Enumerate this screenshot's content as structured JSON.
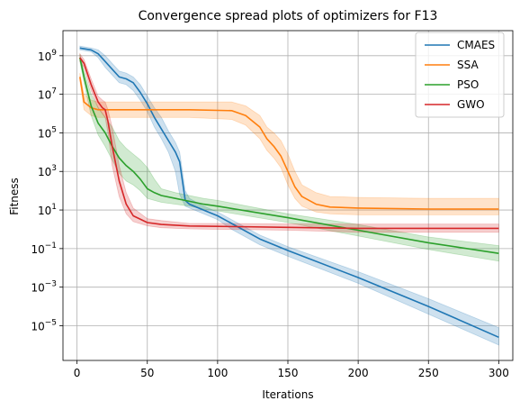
{
  "chart_data": {
    "type": "line",
    "title": "Convergence spread plots of optimizers for F13",
    "xlabel": "Iterations",
    "ylabel": "Fitness",
    "xlim": [
      -10,
      310
    ],
    "ylim_log10": [
      -6.8,
      10.3
    ],
    "yscale": "log",
    "grid": true,
    "legend_position": "top-right",
    "x_ticks": [
      0,
      50,
      100,
      150,
      200,
      250,
      300
    ],
    "x_tick_labels": [
      "0",
      "50",
      "100",
      "150",
      "200",
      "250",
      "300"
    ],
    "y_tick_exponents": [
      9,
      7,
      5,
      3,
      1,
      -1,
      -3,
      -5
    ],
    "y_tick_labels": [
      {
        "base": "10",
        "exp": "9"
      },
      {
        "base": "10",
        "exp": "7"
      },
      {
        "base": "10",
        "exp": "5"
      },
      {
        "base": "10",
        "exp": "3"
      },
      {
        "base": "10",
        "exp": "1"
      },
      {
        "base": "10",
        "exp": "−1"
      },
      {
        "base": "10",
        "exp": "−3"
      },
      {
        "base": "10",
        "exp": "−5"
      }
    ],
    "series": [
      {
        "name": "CMAES",
        "color": "#1f77b4",
        "x": [
          2,
          10,
          15,
          20,
          25,
          30,
          35,
          40,
          45,
          50,
          55,
          60,
          65,
          70,
          73,
          77,
          80,
          90,
          100,
          110,
          130,
          150,
          200,
          250,
          300
        ],
        "log_mean": [
          9.4,
          9.3,
          9.1,
          8.7,
          8.3,
          7.9,
          7.8,
          7.6,
          7.1,
          6.5,
          5.8,
          5.2,
          4.6,
          4.0,
          3.5,
          1.5,
          1.3,
          1.0,
          0.7,
          0.3,
          -0.5,
          -1.1,
          -2.5,
          -4.0,
          -5.6
        ],
        "log_upper": [
          9.5,
          9.4,
          9.3,
          9.0,
          8.6,
          8.2,
          8.1,
          7.9,
          7.5,
          6.9,
          6.3,
          5.8,
          5.1,
          4.5,
          4.0,
          2.0,
          1.6,
          1.2,
          0.9,
          0.5,
          -0.3,
          -0.9,
          -2.2,
          -3.6,
          -5.1
        ],
        "log_lower": [
          9.3,
          9.2,
          8.9,
          8.4,
          8.0,
          7.6,
          7.5,
          7.2,
          6.7,
          6.1,
          5.3,
          4.7,
          4.0,
          3.0,
          1.8,
          1.2,
          1.1,
          0.8,
          0.5,
          0.0,
          -0.8,
          -1.4,
          -2.8,
          -4.4,
          -6.0
        ]
      },
      {
        "name": "SSA",
        "color": "#ff7f0e",
        "x": [
          2,
          5,
          10,
          15,
          20,
          50,
          80,
          110,
          120,
          130,
          135,
          140,
          145,
          150,
          155,
          160,
          170,
          180,
          200,
          250,
          300
        ],
        "log_mean": [
          7.9,
          6.6,
          6.3,
          6.2,
          6.2,
          6.2,
          6.2,
          6.15,
          5.9,
          5.3,
          4.7,
          4.3,
          3.8,
          3.0,
          2.2,
          1.7,
          1.3,
          1.15,
          1.1,
          1.05,
          1.05
        ],
        "log_upper": [
          8.1,
          7.0,
          6.7,
          6.6,
          6.6,
          6.6,
          6.6,
          6.6,
          6.4,
          5.9,
          5.3,
          5.0,
          4.6,
          3.9,
          3.0,
          2.3,
          1.9,
          1.7,
          1.65,
          1.6,
          1.6
        ],
        "log_lower": [
          7.7,
          6.2,
          5.9,
          5.8,
          5.8,
          5.8,
          5.8,
          5.7,
          5.4,
          4.7,
          4.1,
          3.7,
          3.2,
          2.3,
          1.6,
          1.2,
          0.9,
          0.8,
          0.75,
          0.75,
          0.75
        ]
      },
      {
        "name": "PSO",
        "color": "#2ca02c",
        "x": [
          2,
          5,
          10,
          15,
          20,
          25,
          30,
          35,
          40,
          45,
          50,
          55,
          60,
          70,
          80,
          90,
          100,
          150,
          200,
          250,
          300
        ],
        "log_mean": [
          8.9,
          7.9,
          6.4,
          5.5,
          5.0,
          4.3,
          3.7,
          3.3,
          3.0,
          2.6,
          2.1,
          1.9,
          1.75,
          1.6,
          1.45,
          1.3,
          1.2,
          0.6,
          -0.05,
          -0.7,
          -1.25
        ],
        "log_upper": [
          9.1,
          8.2,
          7.0,
          6.3,
          5.8,
          5.3,
          4.6,
          4.2,
          3.9,
          3.6,
          3.2,
          2.6,
          2.1,
          1.9,
          1.75,
          1.6,
          1.5,
          0.8,
          0.25,
          -0.4,
          -0.85
        ],
        "log_lower": [
          8.7,
          7.6,
          5.9,
          4.9,
          4.3,
          3.6,
          2.9,
          2.5,
          2.3,
          2.0,
          1.6,
          1.5,
          1.4,
          1.3,
          1.2,
          1.05,
          0.95,
          0.35,
          -0.35,
          -1.05,
          -1.65
        ]
      },
      {
        "name": "GWO",
        "color": "#d62728",
        "x": [
          2,
          5,
          10,
          15,
          18,
          20,
          22,
          25,
          30,
          35,
          40,
          50,
          60,
          80,
          100,
          150,
          200,
          250,
          300
        ],
        "log_mean": [
          8.9,
          8.6,
          7.5,
          6.6,
          6.3,
          6.2,
          5.6,
          4.3,
          2.5,
          1.3,
          0.7,
          0.35,
          0.25,
          0.17,
          0.15,
          0.1,
          0.05,
          0.05,
          0.05
        ],
        "log_upper": [
          9.1,
          8.8,
          7.8,
          6.9,
          6.7,
          6.6,
          6.2,
          5.3,
          3.3,
          1.9,
          1.1,
          0.55,
          0.45,
          0.3,
          0.3,
          0.28,
          0.27,
          0.27,
          0.27
        ],
        "log_lower": [
          8.7,
          8.4,
          7.2,
          6.3,
          6.0,
          5.8,
          5.0,
          3.3,
          1.7,
          0.8,
          0.4,
          0.18,
          0.08,
          0.02,
          0.0,
          -0.05,
          -0.15,
          -0.15,
          -0.15
        ]
      }
    ]
  }
}
